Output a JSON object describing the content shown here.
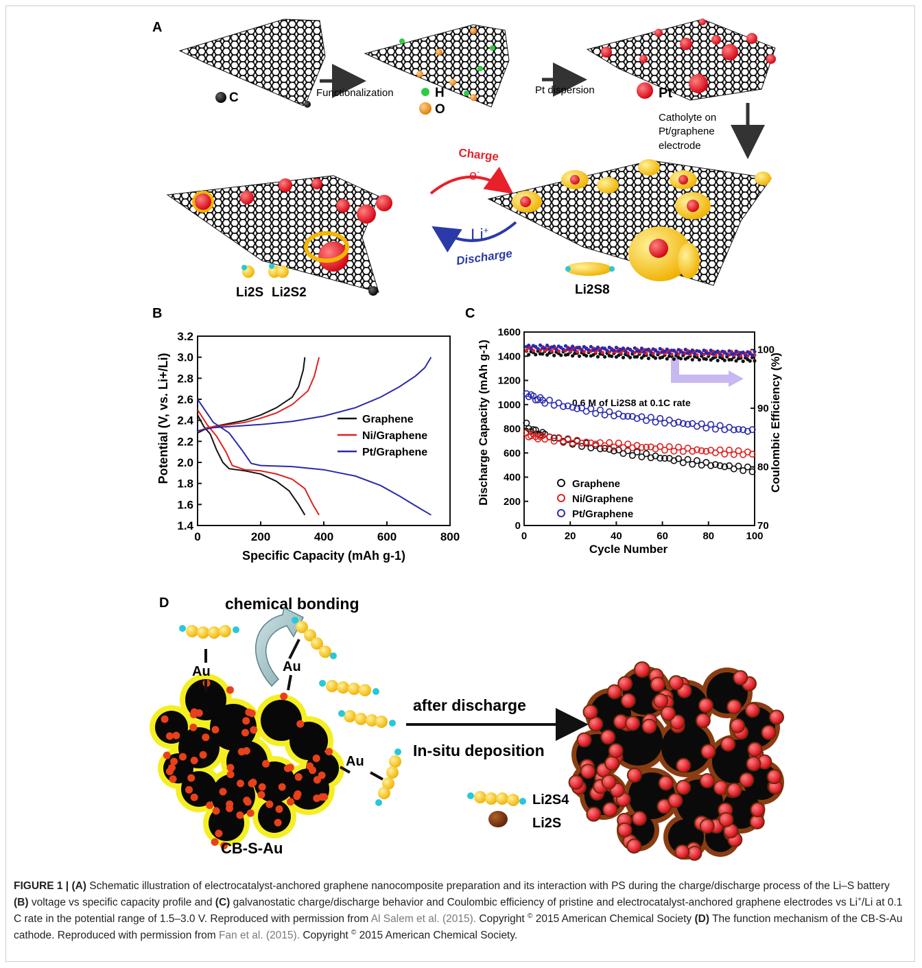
{
  "panel_labels": {
    "a": "A",
    "b": "B",
    "c": "C",
    "d": "D"
  },
  "panel_a": {
    "legend_c": "C",
    "legend_h": "H",
    "legend_o": "O",
    "legend_pt": "Pt",
    "step1": "Functionalization",
    "step2": "Pt dispersion",
    "step3": [
      "Catholyte on",
      "Pt/graphene",
      "electrode"
    ],
    "charge": "Charge",
    "electron": "e",
    "electron_sup": "-",
    "li_ion": "Li",
    "li_ion_sup": "+",
    "discharge": "Discharge",
    "li2s": "Li2S",
    "li2s2": "Li2S2",
    "li2s8": "Li2S8",
    "colors": {
      "carbon": "#111111",
      "hydrogen": "#2ecc40",
      "oxygen": "#f0901a",
      "platinum": "#e8202a",
      "sulfur": "#f5b400",
      "lithium": "#29c8d8"
    }
  },
  "chart_b": {
    "type": "line",
    "ylabel": "Potential (V, vs. Li+/Li)",
    "xlabel": "Specific Capacity (mAh g-1)",
    "xlim": [
      0,
      800
    ],
    "ylim": [
      1.4,
      3.2
    ],
    "xticks": [
      0,
      200,
      400,
      600,
      800
    ],
    "yticks": [
      1.4,
      1.6,
      1.8,
      2.0,
      2.2,
      2.4,
      2.6,
      2.8,
      3.0,
      3.2
    ],
    "legend_position": "center-right",
    "series": [
      {
        "name": "Graphene",
        "color": "#111111",
        "discharge": [
          [
            0,
            2.45
          ],
          [
            20,
            2.34
          ],
          [
            40,
            2.27
          ],
          [
            60,
            2.12
          ],
          [
            80,
            2.0
          ],
          [
            100,
            1.94
          ],
          [
            150,
            1.92
          ],
          [
            200,
            1.89
          ],
          [
            250,
            1.82
          ],
          [
            290,
            1.73
          ],
          [
            320,
            1.6
          ],
          [
            340,
            1.5
          ]
        ],
        "charge": [
          [
            0,
            2.28
          ],
          [
            20,
            2.31
          ],
          [
            50,
            2.34
          ],
          [
            100,
            2.37
          ],
          [
            150,
            2.4
          ],
          [
            200,
            2.45
          ],
          [
            250,
            2.52
          ],
          [
            300,
            2.62
          ],
          [
            320,
            2.72
          ],
          [
            335,
            2.88
          ],
          [
            340,
            3.0
          ]
        ]
      },
      {
        "name": "Ni/Graphene",
        "color": "#e02020",
        "discharge": [
          [
            0,
            2.5
          ],
          [
            30,
            2.36
          ],
          [
            60,
            2.25
          ],
          [
            90,
            2.1
          ],
          [
            110,
            1.97
          ],
          [
            150,
            1.93
          ],
          [
            200,
            1.92
          ],
          [
            250,
            1.89
          ],
          [
            300,
            1.84
          ],
          [
            340,
            1.75
          ],
          [
            365,
            1.6
          ],
          [
            385,
            1.5
          ]
        ],
        "charge": [
          [
            0,
            2.29
          ],
          [
            30,
            2.33
          ],
          [
            80,
            2.35
          ],
          [
            150,
            2.38
          ],
          [
            200,
            2.42
          ],
          [
            250,
            2.47
          ],
          [
            300,
            2.55
          ],
          [
            350,
            2.68
          ],
          [
            370,
            2.82
          ],
          [
            385,
            3.0
          ]
        ]
      },
      {
        "name": "Pt/Graphene",
        "color": "#2a2aa8",
        "discharge": [
          [
            0,
            2.6
          ],
          [
            50,
            2.38
          ],
          [
            100,
            2.28
          ],
          [
            140,
            2.12
          ],
          [
            170,
            1.99
          ],
          [
            200,
            1.97
          ],
          [
            300,
            1.96
          ],
          [
            400,
            1.93
          ],
          [
            500,
            1.87
          ],
          [
            580,
            1.78
          ],
          [
            640,
            1.68
          ],
          [
            700,
            1.57
          ],
          [
            740,
            1.5
          ]
        ],
        "charge": [
          [
            0,
            2.3
          ],
          [
            50,
            2.33
          ],
          [
            100,
            2.34
          ],
          [
            200,
            2.36
          ],
          [
            300,
            2.39
          ],
          [
            400,
            2.44
          ],
          [
            500,
            2.52
          ],
          [
            580,
            2.62
          ],
          [
            640,
            2.72
          ],
          [
            690,
            2.82
          ],
          [
            720,
            2.9
          ],
          [
            740,
            3.0
          ]
        ]
      }
    ]
  },
  "chart_c": {
    "type": "scatter",
    "ylabel": "Discharge Capacity (mAh g-1)",
    "y2label": "Coulombic Efficiency (%)",
    "xlabel": "Cycle Number",
    "xlim": [
      0,
      100
    ],
    "ylim": [
      0,
      1600
    ],
    "y2lim": [
      70,
      103
    ],
    "xticks": [
      0,
      20,
      40,
      60,
      80,
      100
    ],
    "yticks": [
      0,
      200,
      400,
      600,
      800,
      1000,
      1200,
      1400,
      1600
    ],
    "y2ticks": [
      70,
      80,
      90,
      100
    ],
    "annotation": "0.6 M of Li2S8 at 0.1C rate",
    "legend_position": "bottom-left",
    "series": [
      {
        "name": "Graphene",
        "color": "#111111",
        "marker": "pentagon",
        "capacity_start": 830,
        "capacity_end": 460,
        "ce_start": 99.5,
        "ce_end": 98.3
      },
      {
        "name": "Ni/Graphene",
        "color": "#e02020",
        "marker": "circle",
        "capacity_start": 760,
        "capacity_end": 595,
        "ce_start": 100.2,
        "ce_end": 99.2
      },
      {
        "name": "Pt/Graphene",
        "color": "#2a2ab0",
        "marker": "circle",
        "capacity_start": 1100,
        "capacity_end": 780,
        "ce_start": 100.5,
        "ce_end": 99.3
      }
    ]
  },
  "panel_d": {
    "chemical_bonding": "chemical bonding",
    "au": "Au",
    "after_discharge": "after discharge",
    "in_situ": "In-situ deposition",
    "li2s4": "Li2S4",
    "li2s": "Li2S",
    "cb_s_au": "CB-S-Au"
  },
  "caption": {
    "fig": "FIGURE 1 |",
    "a_label": "(A)",
    "a_text": "Schematic illustration of electrocatalyst-anchored graphene nanocomposite preparation and its interaction with PS during the charge/discharge process of the Li–S battery",
    "b_label": "(B)",
    "b_text": "voltage vs specific capacity profile and",
    "c_label": "(C)",
    "c_text_1": "galvanostatic charge/discharge behavior and Coulombic efficiency of pristine and electrocatalyst-anchored graphene electrodes vs Li",
    "c_text_sup": "+",
    "c_text_2": "/Li at 0.1 C rate in the potential range of 1.5–3.0 V. Reproduced with permission from",
    "ref1": "Al Salem et al. (2015).",
    "copy1_pre": "Copyright",
    "copy_sym": "©",
    "copy1_post": "2015 American Chemical Society",
    "d_label": "(D)",
    "d_text": "The function mechanism of the CB-S-Au cathode. Reproduced with permission from",
    "ref2": "Fan et al. (2015).",
    "copy2_pre": "Copyright",
    "copy2_post": "2015 American Chemical Society."
  }
}
